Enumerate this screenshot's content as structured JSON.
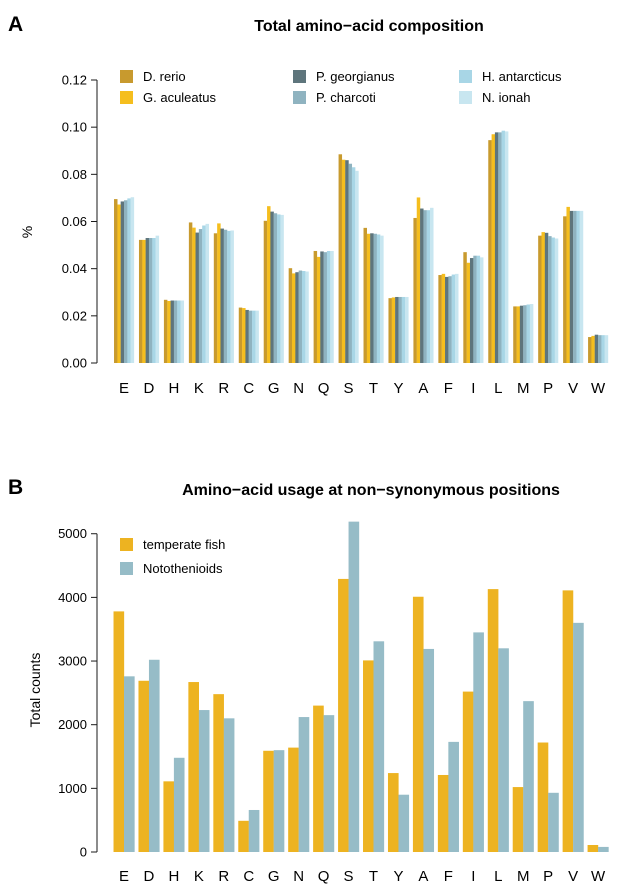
{
  "colors": {
    "D_rerio": "#C89A2E",
    "G_aculeatus": "#F5BE1E",
    "P_georgianus": "#5E757C",
    "P_charcoti": "#8FB3C0",
    "H_antarcticus": "#A8D6E6",
    "N_ionah": "#C8E6F0",
    "temperate": "#EDB321",
    "notothenioid": "#96BCC7",
    "axis": "#1a1a1a"
  },
  "chart_data": [
    {
      "panel": "A",
      "type": "bar",
      "title": "Total amino−acid composition",
      "ylabel": "%",
      "xlabel": "",
      "ylim": [
        0,
        0.12
      ],
      "yticks": [
        "0.00",
        "0.02",
        "0.04",
        "0.06",
        "0.08",
        "0.10",
        "0.12"
      ],
      "categories": [
        "E",
        "D",
        "H",
        "K",
        "R",
        "C",
        "G",
        "N",
        "Q",
        "S",
        "T",
        "Y",
        "A",
        "F",
        "I",
        "L",
        "M",
        "P",
        "V",
        "W"
      ],
      "legend_position": "top",
      "series": [
        {
          "name": "D. rerio",
          "color_key": "D_rerio",
          "values": [
            0.0695,
            0.0522,
            0.0268,
            0.0596,
            0.055,
            0.0235,
            0.0603,
            0.0402,
            0.0475,
            0.0885,
            0.0573,
            0.0275,
            0.0615,
            0.0373,
            0.047,
            0.0945,
            0.024,
            0.054,
            0.0622,
            0.011
          ]
        },
        {
          "name": "G. aculeatus",
          "color_key": "G_aculeatus",
          "values": [
            0.0672,
            0.0522,
            0.0263,
            0.0574,
            0.0592,
            0.0233,
            0.0665,
            0.038,
            0.045,
            0.0862,
            0.0548,
            0.0278,
            0.0702,
            0.0378,
            0.0425,
            0.097,
            0.024,
            0.0555,
            0.0662,
            0.0115
          ]
        },
        {
          "name": "P. georgianus",
          "color_key": "P_georgianus",
          "values": [
            0.0685,
            0.053,
            0.0265,
            0.0553,
            0.057,
            0.0225,
            0.0642,
            0.0385,
            0.0473,
            0.086,
            0.055,
            0.028,
            0.0655,
            0.0365,
            0.0445,
            0.0978,
            0.0243,
            0.0552,
            0.0645,
            0.012
          ]
        },
        {
          "name": "P. charcoti",
          "color_key": "P_charcoti",
          "values": [
            0.069,
            0.053,
            0.0265,
            0.0568,
            0.0565,
            0.0222,
            0.0635,
            0.0392,
            0.047,
            0.0845,
            0.0548,
            0.028,
            0.0648,
            0.0368,
            0.0455,
            0.0978,
            0.0245,
            0.0538,
            0.0645,
            0.0118
          ]
        },
        {
          "name": "H. antarcticus",
          "color_key": "H_antarcticus",
          "values": [
            0.0698,
            0.053,
            0.0265,
            0.0583,
            0.056,
            0.0222,
            0.063,
            0.039,
            0.0475,
            0.083,
            0.0545,
            0.028,
            0.0648,
            0.0375,
            0.0455,
            0.0985,
            0.0248,
            0.0532,
            0.0645,
            0.0118
          ]
        },
        {
          "name": "N. ionah",
          "color_key": "N_ionah",
          "values": [
            0.0703,
            0.054,
            0.0265,
            0.059,
            0.0562,
            0.0222,
            0.0628,
            0.0388,
            0.0475,
            0.0815,
            0.054,
            0.028,
            0.0658,
            0.0378,
            0.0448,
            0.0982,
            0.025,
            0.0528,
            0.0645,
            0.0118
          ]
        }
      ]
    },
    {
      "panel": "B",
      "type": "bar",
      "title": "Amino−acid usage at non−synonymous positions",
      "ylabel": "Total counts",
      "xlabel": "",
      "ylim": [
        0,
        5200
      ],
      "yticks": [
        "0",
        "1000",
        "2000",
        "3000",
        "4000",
        "5000"
      ],
      "categories": [
        "E",
        "D",
        "H",
        "K",
        "R",
        "C",
        "G",
        "N",
        "Q",
        "S",
        "T",
        "Y",
        "A",
        "F",
        "I",
        "L",
        "M",
        "P",
        "V",
        "W"
      ],
      "legend_position": "top-left",
      "series": [
        {
          "name": "temperate fish",
          "color_key": "temperate",
          "values": [
            3780,
            2690,
            1110,
            2670,
            2480,
            490,
            1590,
            1640,
            2300,
            4290,
            3010,
            1240,
            4010,
            1210,
            2520,
            4130,
            1020,
            1720,
            4110,
            110
          ]
        },
        {
          "name": "Notothenioids",
          "color_key": "notothenioid",
          "values": [
            2760,
            3020,
            1480,
            2230,
            2100,
            660,
            1600,
            2120,
            2150,
            5190,
            3310,
            900,
            3190,
            1730,
            3450,
            3200,
            2370,
            930,
            3600,
            80
          ]
        }
      ]
    }
  ]
}
